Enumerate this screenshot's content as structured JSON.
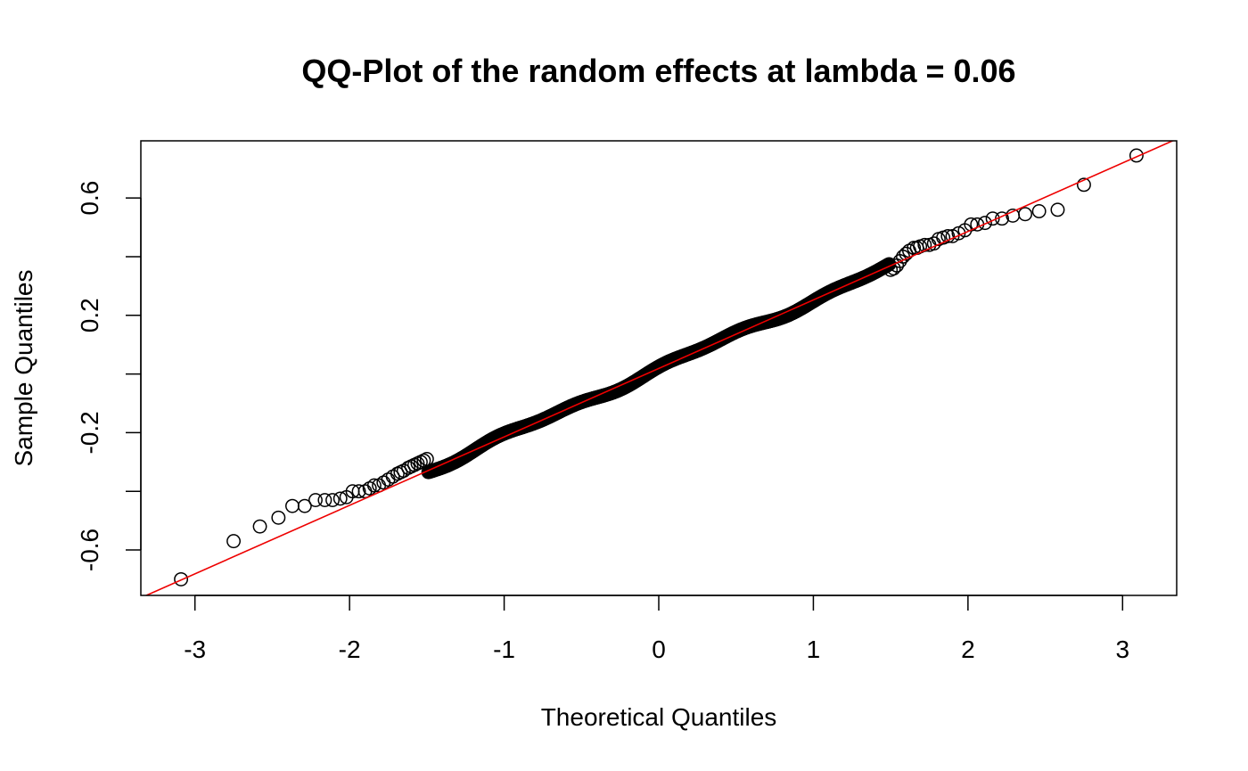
{
  "chart_data": {
    "type": "scatter",
    "title": "QQ-Plot of the random effects at lambda = 0.06",
    "xlabel": "Theoretical Quantiles",
    "ylabel": "Sample Quantiles",
    "xlim": [
      -3.35,
      3.35
    ],
    "ylim": [
      -0.755,
      0.795
    ],
    "xticks": [
      -3,
      -2,
      -1,
      0,
      1,
      2,
      3
    ],
    "xtick_labels": [
      "-3",
      "-2",
      "-1",
      "0",
      "1",
      "2",
      "3"
    ],
    "yticks": [
      -0.6,
      -0.4,
      -0.2,
      0.0,
      0.2,
      0.4,
      0.6
    ],
    "ytick_labels": [
      "-0.6",
      "",
      "-0.2",
      "",
      "0.2",
      "",
      "0.6"
    ],
    "grid": false,
    "reference_line": {
      "intercept": 0.019,
      "slope": 0.2335,
      "color": "#ee0000"
    },
    "point_color": "#000000",
    "n_points": 700,
    "low_tail": [
      [
        -3.09,
        -0.7
      ],
      [
        -2.75,
        -0.57
      ],
      [
        -2.58,
        -0.52
      ],
      [
        -2.46,
        -0.49
      ],
      [
        -2.37,
        -0.45
      ],
      [
        -2.29,
        -0.45
      ],
      [
        -2.22,
        -0.43
      ],
      [
        -2.16,
        -0.43
      ],
      [
        -2.11,
        -0.43
      ],
      [
        -2.06,
        -0.425
      ],
      [
        -2.02,
        -0.42
      ],
      [
        -1.98,
        -0.4
      ],
      [
        -1.94,
        -0.4
      ],
      [
        -1.9,
        -0.4
      ],
      [
        -1.87,
        -0.39
      ],
      [
        -1.84,
        -0.38
      ],
      [
        -1.81,
        -0.38
      ],
      [
        -1.78,
        -0.37
      ],
      [
        -1.75,
        -0.36
      ],
      [
        -1.72,
        -0.35
      ],
      [
        -1.69,
        -0.34
      ],
      [
        -1.67,
        -0.335
      ],
      [
        -1.65,
        -0.33
      ],
      [
        -1.62,
        -0.32
      ],
      [
        -1.6,
        -0.315
      ],
      [
        -1.58,
        -0.31
      ],
      [
        -1.56,
        -0.305
      ],
      [
        -1.54,
        -0.3
      ],
      [
        -1.52,
        -0.295
      ],
      [
        -1.5,
        -0.29
      ]
    ],
    "high_tail": [
      [
        1.5,
        0.355
      ],
      [
        1.52,
        0.36
      ],
      [
        1.54,
        0.37
      ],
      [
        1.56,
        0.385
      ],
      [
        1.58,
        0.4
      ],
      [
        1.6,
        0.41
      ],
      [
        1.62,
        0.42
      ],
      [
        1.65,
        0.43
      ],
      [
        1.67,
        0.43
      ],
      [
        1.69,
        0.435
      ],
      [
        1.72,
        0.44
      ],
      [
        1.75,
        0.44
      ],
      [
        1.78,
        0.445
      ],
      [
        1.81,
        0.46
      ],
      [
        1.84,
        0.465
      ],
      [
        1.87,
        0.47
      ],
      [
        1.9,
        0.47
      ],
      [
        1.94,
        0.48
      ],
      [
        1.98,
        0.49
      ],
      [
        2.02,
        0.51
      ],
      [
        2.06,
        0.51
      ],
      [
        2.11,
        0.515
      ],
      [
        2.16,
        0.53
      ],
      [
        2.22,
        0.53
      ],
      [
        2.29,
        0.54
      ],
      [
        2.37,
        0.545
      ],
      [
        2.46,
        0.555
      ],
      [
        2.58,
        0.56
      ],
      [
        2.75,
        0.645
      ],
      [
        3.09,
        0.745
      ]
    ]
  }
}
